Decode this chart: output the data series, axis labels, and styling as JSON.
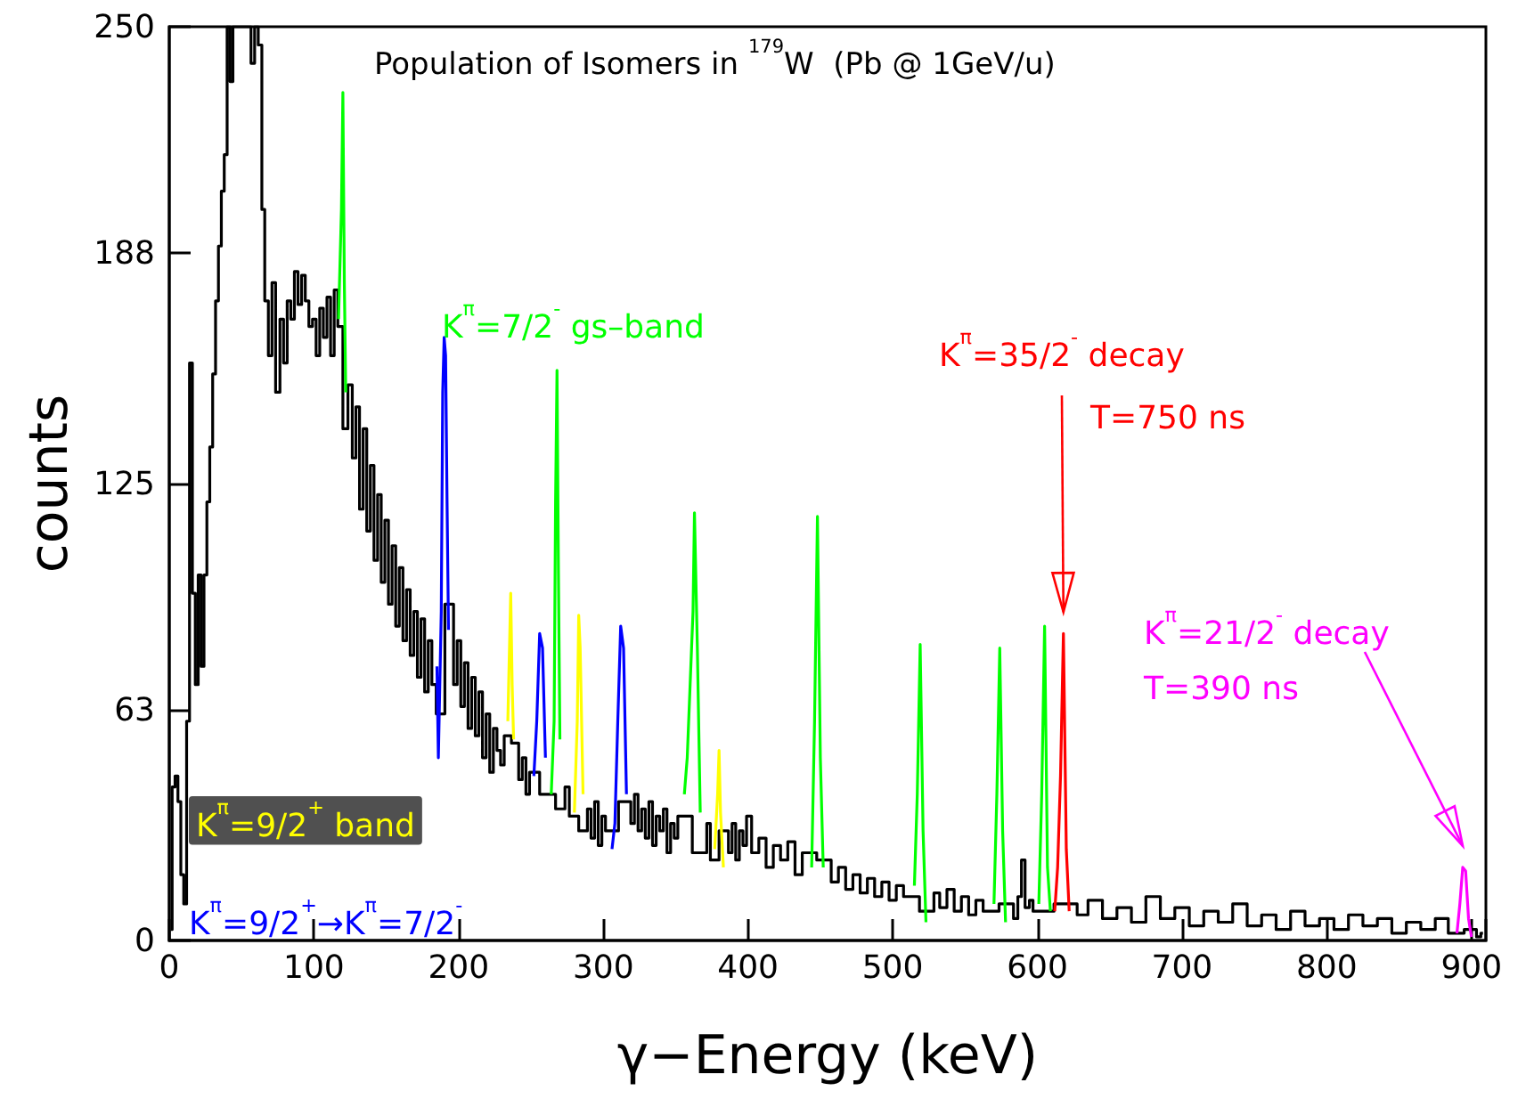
{
  "chart_data": {
    "type": "step",
    "title": "Population of Isomers in $^{179}$W  (Pb @ 1GeV/u)",
    "xlabel": "γ−Energy (keV)",
    "ylabel": "counts",
    "xlim": [
      0,
      910
    ],
    "xticks": [
      0,
      100,
      200,
      300,
      400,
      500,
      600,
      700,
      800,
      900
    ],
    "ylim": [
      0,
      250
    ],
    "yticks": [
      0,
      63,
      125,
      188,
      250
    ],
    "grid": false,
    "legend": false,
    "marker": "none",
    "series": [
      {
        "color": "#000000",
        "x": [
          1,
          3,
          5,
          7,
          9,
          11,
          13,
          15,
          17,
          19,
          21,
          23,
          25,
          27,
          29,
          31,
          33,
          35,
          37,
          39,
          41,
          43,
          45,
          50,
          55,
          58,
          60,
          63,
          65,
          67,
          70,
          72,
          75,
          78,
          80,
          83,
          85,
          88,
          90,
          93,
          95,
          98,
          100,
          103,
          105,
          108,
          110,
          113,
          115,
          118,
          122,
          125,
          128,
          130,
          133,
          135,
          138,
          140,
          143,
          145,
          148,
          150,
          153,
          155,
          158,
          160,
          163,
          165,
          168,
          170,
          173,
          175,
          178,
          180,
          183,
          186,
          195,
          198,
          200,
          203,
          205,
          208,
          210,
          213,
          215,
          218,
          220,
          223,
          225,
          228,
          230,
          233,
          240,
          243,
          245,
          248,
          250,
          262,
          272,
          275,
          278,
          288,
          290,
          293,
          295,
          298,
          300,
          303,
          318,
          320,
          323,
          325,
          328,
          330,
          333,
          335,
          338,
          340,
          343,
          345,
          348,
          350,
          353,
          370,
          373,
          375,
          385,
          388,
          390,
          393,
          395,
          398,
          400,
          405,
          410,
          415,
          420,
          425,
          430,
          435,
          440,
          455,
          460,
          465,
          470,
          475,
          480,
          485,
          490,
          495,
          500,
          505,
          510,
          527,
          530,
          535,
          540,
          545,
          550,
          555,
          560,
          565,
          582,
          585,
          588,
          590,
          593,
          596,
          598,
          625,
          630,
          640,
          650,
          660,
          670,
          680,
          690,
          700,
          710,
          720,
          730,
          740,
          750,
          760,
          770,
          780,
          790,
          800,
          810,
          820,
          830,
          840,
          850,
          860,
          870,
          880,
          888,
          902,
          905,
          908
        ],
        "values": [
          3,
          42,
          45,
          38,
          18,
          10,
          60,
          158,
          95,
          70,
          100,
          75,
          100,
          120,
          135,
          155,
          175,
          190,
          205,
          215,
          250,
          235,
          250,
          250,
          250,
          240,
          250,
          245,
          200,
          175,
          160,
          180,
          150,
          170,
          158,
          175,
          170,
          183,
          174,
          182,
          175,
          168,
          170,
          160,
          173,
          165,
          176,
          160,
          178,
          168,
          140,
          152,
          132,
          146,
          118,
          140,
          112,
          130,
          104,
          122,
          98,
          115,
          92,
          108,
          86,
          102,
          82,
          96,
          78,
          90,
          72,
          88,
          68,
          82,
          70,
          62,
          92,
          70,
          82,
          64,
          76,
          58,
          72,
          56,
          68,
          50,
          62,
          46,
          58,
          52,
          48,
          56,
          54,
          44,
          50,
          40,
          46,
          40,
          36,
          42,
          34,
          30,
          36,
          28,
          38,
          26,
          34,
          30,
          38,
          32,
          40,
          30,
          36,
          28,
          38,
          26,
          34,
          30,
          36,
          24,
          32,
          28,
          34,
          24,
          32,
          22,
          30,
          24,
          32,
          22,
          30,
          26,
          34,
          24,
          28,
          20,
          26,
          22,
          27,
          18,
          24,
          22,
          16,
          20,
          14,
          18,
          13,
          17,
          12,
          16,
          11,
          15,
          12,
          8,
          13,
          9,
          14,
          8,
          12,
          7,
          11,
          8,
          10,
          6,
          12,
          22,
          9,
          11,
          8,
          10,
          7,
          11,
          6,
          9,
          5,
          12,
          6,
          9,
          4,
          8,
          5,
          10,
          4,
          7,
          3,
          8,
          4,
          6,
          3,
          7,
          4,
          6,
          2,
          5,
          3,
          6,
          2,
          3,
          1,
          2
        ]
      },
      {
        "name": "K$^{π}$=7/2$^{-}$ gs–band",
        "color": "#00ff00",
        "type": "line",
        "x": [
          117,
          119,
          120,
          121,
          122,
          123,
          264,
          266,
          267,
          268,
          269,
          270,
          271,
          356,
          358,
          360,
          362,
          363,
          365,
          367,
          368,
          444,
          446,
          448,
          450,
          452,
          453,
          515,
          517,
          519,
          521,
          523,
          524,
          570,
          572,
          574,
          576,
          578,
          579,
          601,
          603,
          605,
          607,
          609
        ],
        "values": [
          170,
          200,
          232,
          180,
          150,
          null,
          40,
          60,
          120,
          156,
          100,
          55,
          null,
          40,
          50,
          70,
          90,
          117,
          80,
          35,
          null,
          20,
          60,
          116,
          50,
          20,
          null,
          15,
          40,
          81,
          30,
          5,
          null,
          10,
          40,
          80,
          30,
          5,
          null,
          10,
          40,
          86,
          20,
          8
        ]
      },
      {
        "name": "K$^{π}$=9/2$^{+}$→K$^{π}$=7/2$^{-}$",
        "color": "#0000ff",
        "type": "line",
        "x": [
          185,
          186,
          188,
          189,
          190,
          191,
          192,
          193,
          194,
          252,
          254,
          256,
          258,
          260,
          261,
          306,
          308,
          310,
          312,
          314,
          316
        ],
        "values": [
          75,
          50,
          90,
          150,
          165,
          160,
          120,
          85,
          null,
          45,
          60,
          84,
          80,
          50,
          null,
          25,
          32,
          60,
          86,
          80,
          40
        ]
      },
      {
        "name": "K$^{π}$=9/2$^{+}$ band",
        "color": "#ffff00",
        "type": "line",
        "x": [
          234,
          236,
          237,
          238,
          239,
          280,
          282,
          283,
          284,
          286,
          287,
          377,
          379,
          380,
          381,
          383
        ],
        "values": [
          60,
          95,
          70,
          55,
          null,
          35,
          60,
          89,
          80,
          40,
          null,
          25,
          40,
          52,
          35,
          20
        ]
      },
      {
        "name": "K$^{π}$=35/2$^{-}$ decay",
        "color": "#ff0000",
        "type": "line",
        "x": [
          612,
          614,
          616,
          618,
          620,
          622
        ],
        "values": [
          8,
          20,
          45,
          84,
          25,
          8
        ]
      },
      {
        "name": "K$^{π}$=21/2$^{-}$ decay",
        "color": "#ff00ff",
        "type": "line",
        "x": [
          890,
          892,
          894,
          896,
          898,
          900
        ],
        "values": [
          2,
          10,
          20,
          19,
          6,
          1
        ]
      }
    ],
    "annotations": [
      "T=750 ns",
      "T=390 ns"
    ]
  }
}
